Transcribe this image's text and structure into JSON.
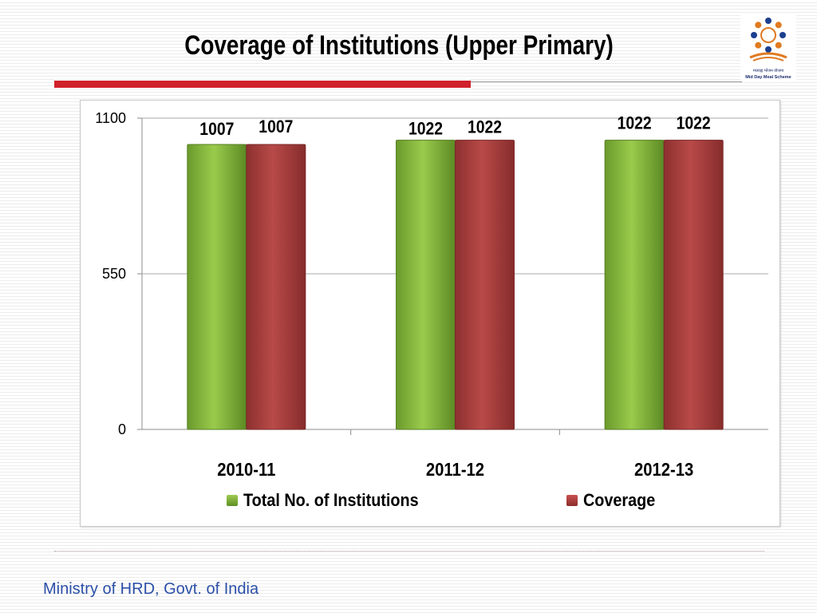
{
  "slide": {
    "title": "Coverage of Institutions (Upper Primary)",
    "footer": "Ministry of HRD, Govt. of India"
  },
  "logo": {
    "icon": "mid-day-meal-scheme-logo",
    "line1": "मध्याह्न भोजन योजना",
    "line2": "Mid Day Meal Scheme"
  },
  "colors": {
    "accent_red": "#d0202a",
    "series_green": "#7fb03a",
    "series_red": "#a63d3c",
    "footer_blue": "#2b4fa8"
  },
  "chart_data": {
    "type": "bar",
    "title": "",
    "xlabel": "",
    "ylabel": "",
    "categories": [
      "2010-11",
      "2011-12",
      "2012-13"
    ],
    "series": [
      {
        "name": "Total No. of Institutions",
        "values": [
          1007,
          1022,
          1022
        ],
        "color": "#7fb03a"
      },
      {
        "name": "Coverage",
        "values": [
          1007,
          1022,
          1022
        ],
        "color": "#a63d3c"
      }
    ],
    "ylim": [
      0,
      1100
    ],
    "yticks": [
      0,
      550,
      1100
    ],
    "grid": true,
    "data_labels": true,
    "legend": "bottom"
  }
}
